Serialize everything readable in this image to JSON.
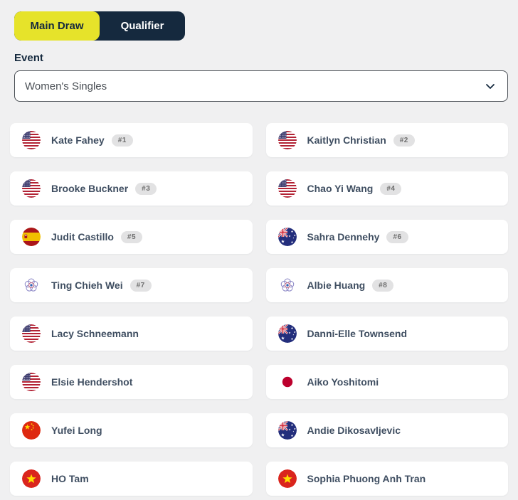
{
  "colors": {
    "page_background": "#f0f0f1",
    "navy": "#15293e",
    "accent_yellow": "#e6e32a",
    "card_background": "#ffffff",
    "name_text": "#3f4e61",
    "seed_badge_background": "#e2e2e3",
    "seed_badge_text": "#6e6e6e"
  },
  "tabs": [
    {
      "label": "Main Draw",
      "active": true
    },
    {
      "label": "Qualifier",
      "active": false
    }
  ],
  "event": {
    "label": "Event",
    "selected": "Women's Singles",
    "chevron_icon": "chevron-down-icon"
  },
  "players": [
    {
      "name": "Kate Fahey",
      "flag": "usa",
      "seed": "#1"
    },
    {
      "name": "Kaitlyn Christian",
      "flag": "usa",
      "seed": "#2"
    },
    {
      "name": "Brooke Buckner",
      "flag": "usa",
      "seed": "#3"
    },
    {
      "name": "Chao Yi Wang",
      "flag": "usa",
      "seed": "#4"
    },
    {
      "name": "Judit Castillo",
      "flag": "esp",
      "seed": "#5"
    },
    {
      "name": "Sahra Dennehy",
      "flag": "aus",
      "seed": "#6"
    },
    {
      "name": "Ting Chieh Wei",
      "flag": "tpe",
      "seed": "#7"
    },
    {
      "name": "Albie Huang",
      "flag": "tpe",
      "seed": "#8"
    },
    {
      "name": "Lacy Schneemann",
      "flag": "usa",
      "seed": null
    },
    {
      "name": "Danni-Elle Townsend",
      "flag": "aus",
      "seed": null
    },
    {
      "name": "Elsie Hendershot",
      "flag": "usa",
      "seed": null
    },
    {
      "name": "Aiko Yoshitomi",
      "flag": "jpn",
      "seed": null
    },
    {
      "name": "Yufei Long",
      "flag": "chn",
      "seed": null
    },
    {
      "name": "Andie Dikosavljevic",
      "flag": "aus",
      "seed": null
    },
    {
      "name": "HO Tam",
      "flag": "vie",
      "seed": null
    },
    {
      "name": "Sophia Phuong Anh Tran",
      "flag": "vie",
      "seed": null
    }
  ]
}
